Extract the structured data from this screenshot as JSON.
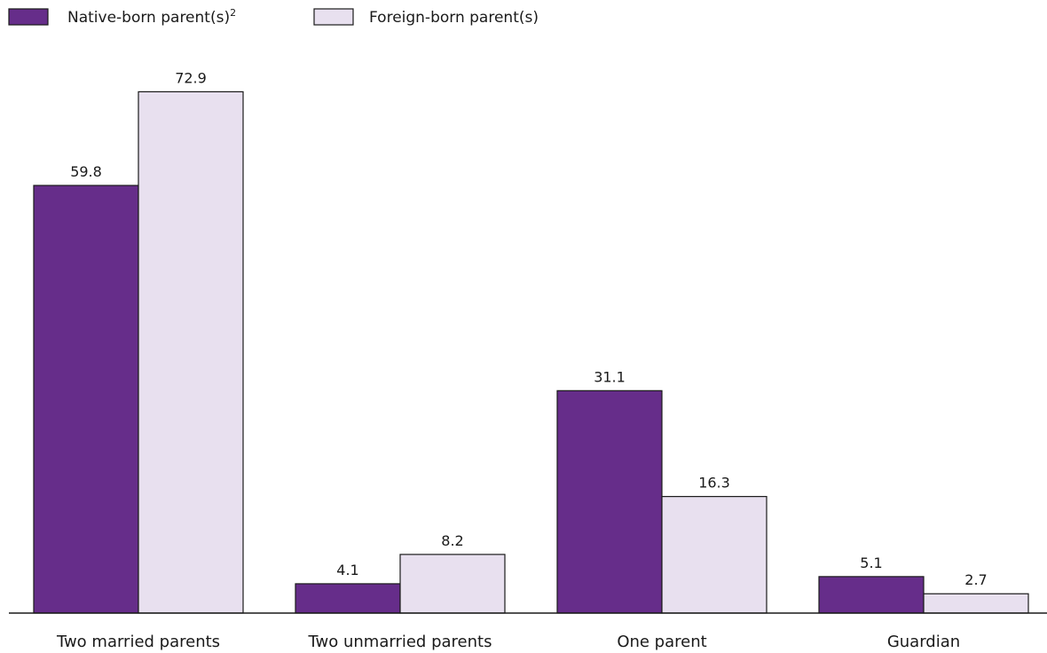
{
  "chart_data": {
    "type": "bar",
    "title": "",
    "xlabel": "",
    "ylabel": "",
    "ylim": [
      0,
      80
    ],
    "grid": false,
    "legend_position": "top-left",
    "categories": [
      "Two married parents",
      "Two unmarried parents",
      "One parent",
      "Guardian"
    ],
    "series": [
      {
        "name": "Native-born parent(s)",
        "legend_superscript": "2",
        "color": "#662d8a",
        "values": [
          59.8,
          4.1,
          31.1,
          5.1
        ],
        "labels": [
          "59.8",
          "4.1",
          "31.1",
          "5.1"
        ]
      },
      {
        "name": "Foreign-born parent(s)",
        "legend_superscript": "",
        "color": "#e8e0ef",
        "values": [
          72.9,
          8.2,
          16.3,
          2.7
        ],
        "labels": [
          "72.9",
          "8.2",
          "16.3",
          "2.7"
        ]
      }
    ]
  }
}
